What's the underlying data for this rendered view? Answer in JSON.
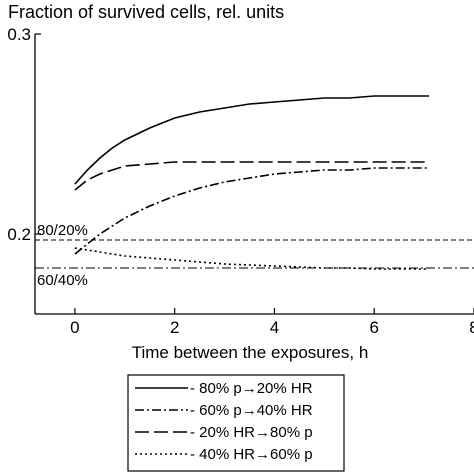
{
  "chart_data": {
    "type": "line",
    "title": "Fraction of survived cells, rel. units",
    "xlabel": "Time between the exposures, h",
    "ylabel": "",
    "xlim": [
      -0.8,
      8
    ],
    "ylim": [
      0.16,
      0.3
    ],
    "x_ticks": [
      0,
      2,
      4,
      6,
      8
    ],
    "x_tick_labels": [
      "0",
      "2",
      "4",
      "6",
      "8"
    ],
    "y_ticks": [
      0.2,
      0.3
    ],
    "y_tick_labels": [
      "0.2",
      "0.3"
    ],
    "grid": false,
    "legend_position": "bottom",
    "x": [
      0,
      0.25,
      0.5,
      0.75,
      1,
      1.5,
      2,
      2.5,
      3,
      3.5,
      4,
      4.5,
      5,
      5.5,
      6,
      6.5,
      7.1
    ],
    "series": [
      {
        "name": "- 80% p→20% HR",
        "style": "solid",
        "values": [
          0.225,
          0.232,
          0.238,
          0.243,
          0.247,
          0.253,
          0.258,
          0.261,
          0.263,
          0.265,
          0.266,
          0.267,
          0.268,
          0.268,
          0.269,
          0.269,
          0.269
        ]
      },
      {
        "name": "- 60% p→40% HR",
        "style": "dashdot",
        "values": [
          0.19,
          0.195,
          0.2,
          0.204,
          0.208,
          0.214,
          0.219,
          0.223,
          0.226,
          0.228,
          0.23,
          0.231,
          0.232,
          0.232,
          0.233,
          0.233,
          0.233
        ]
      },
      {
        "name": "- 20% HR→80% p",
        "style": "longdash",
        "values": [
          0.222,
          0.227,
          0.23,
          0.232,
          0.234,
          0.235,
          0.236,
          0.236,
          0.236,
          0.236,
          0.236,
          0.236,
          0.236,
          0.236,
          0.236,
          0.236,
          0.236
        ]
      },
      {
        "name": "- 40% HR→60% p",
        "style": "dotted",
        "values": [
          0.193,
          0.192,
          0.191,
          0.19,
          0.189,
          0.188,
          0.187,
          0.186,
          0.185,
          0.1845,
          0.184,
          0.1835,
          0.183,
          0.183,
          0.1825,
          0.1825,
          0.1825
        ]
      }
    ],
    "reference_lines": [
      {
        "label": "80/20%",
        "y": 0.197,
        "style": "dashed"
      },
      {
        "label": "60/40%",
        "y": 0.183,
        "style": "dashdot"
      }
    ]
  }
}
